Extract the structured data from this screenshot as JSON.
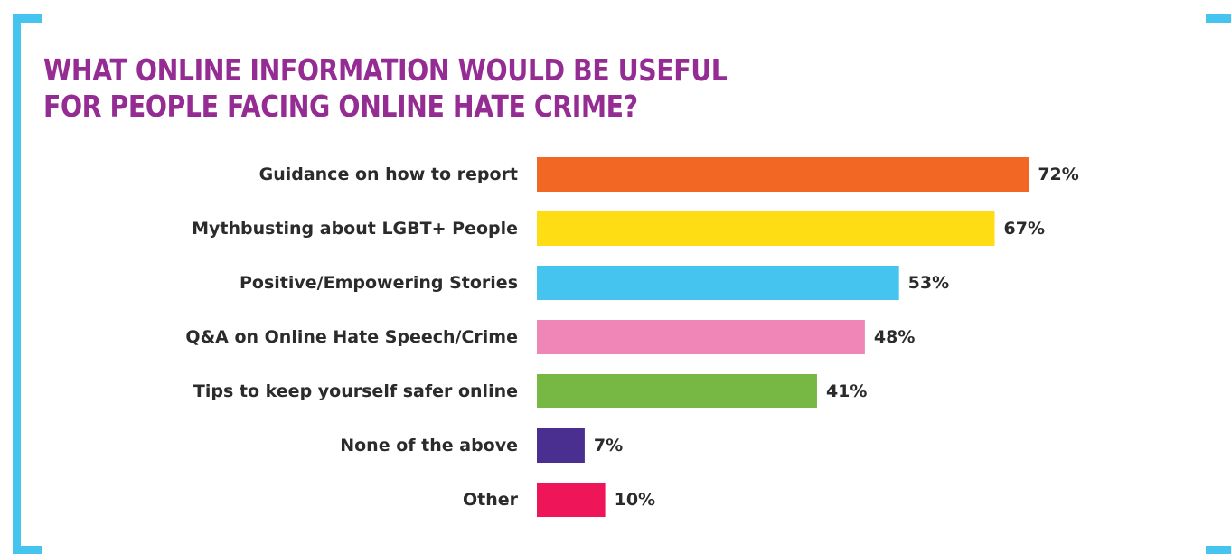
{
  "title": {
    "line1": "WHAT ONLINE INFORMATION WOULD BE USEFUL",
    "line2": "FOR PEOPLE FACING ONLINE HATE CRIME?"
  },
  "colors": {
    "title": "#942c93",
    "bracket": "#45c4f0",
    "text": "#2b2b2b"
  },
  "chart_data": {
    "type": "bar",
    "orientation": "horizontal",
    "categories": [
      "Guidance on how to report",
      "Mythbusting about LGBT+ People",
      "Positive/Empowering Stories",
      "Q&A on Online Hate Speech/Crime",
      "Tips to keep yourself safer online",
      "None of the above",
      "Other"
    ],
    "values": [
      72,
      67,
      53,
      48,
      41,
      7,
      10
    ],
    "value_labels": [
      "72%",
      "67%",
      "53%",
      "48%",
      "41%",
      "7%",
      "10%"
    ],
    "bar_colors": [
      "#f26724",
      "#ffdd15",
      "#45c4f0",
      "#f086b7",
      "#76b843",
      "#4a2f91",
      "#ef1559"
    ],
    "xlim": [
      0,
      100
    ],
    "grid": false,
    "legend": "none"
  }
}
